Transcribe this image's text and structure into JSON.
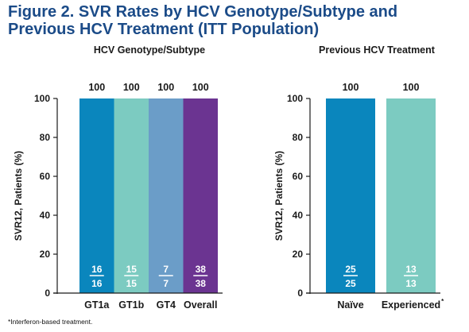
{
  "figure": {
    "title_line1": "Figure 2. SVR Rates by HCV Genotype/Subtype and",
    "title_line2": "Previous HCV Treatment (ITT Population)",
    "footnote": "*Interferon-based treatment."
  },
  "chart_data": [
    {
      "type": "bar",
      "title": "HCV Genotype/Subtype",
      "ylabel": "SVR12, Patients (%)",
      "ylim": [
        0,
        100
      ],
      "yticks": [
        0,
        20,
        40,
        60,
        80,
        100
      ],
      "categories": [
        "GT1a",
        "GT1b",
        "GT4",
        "Overall"
      ],
      "values": [
        100,
        100,
        100,
        100
      ],
      "value_labels": [
        "100",
        "100",
        "100",
        "100"
      ],
      "numerators": [
        "16",
        "15",
        "7",
        "38"
      ],
      "denominators": [
        "16",
        "15",
        "7",
        "38"
      ],
      "category_superscripts": [
        "",
        "",
        "",
        ""
      ],
      "colors": [
        "#0a86bd",
        "#7ccbc1",
        "#6b9dc8",
        "#6b3491"
      ]
    },
    {
      "type": "bar",
      "title": "Previous HCV Treatment",
      "ylabel": "SVR12, Patients (%)",
      "ylim": [
        0,
        100
      ],
      "yticks": [
        0,
        20,
        40,
        60,
        80,
        100
      ],
      "categories": [
        "Naïve",
        "Experienced"
      ],
      "values": [
        100,
        100
      ],
      "value_labels": [
        "100",
        "100"
      ],
      "numerators": [
        "25",
        "13"
      ],
      "denominators": [
        "25",
        "13"
      ],
      "category_superscripts": [
        "",
        "*"
      ],
      "colors": [
        "#0a86bd",
        "#7ccbc1"
      ]
    }
  ]
}
